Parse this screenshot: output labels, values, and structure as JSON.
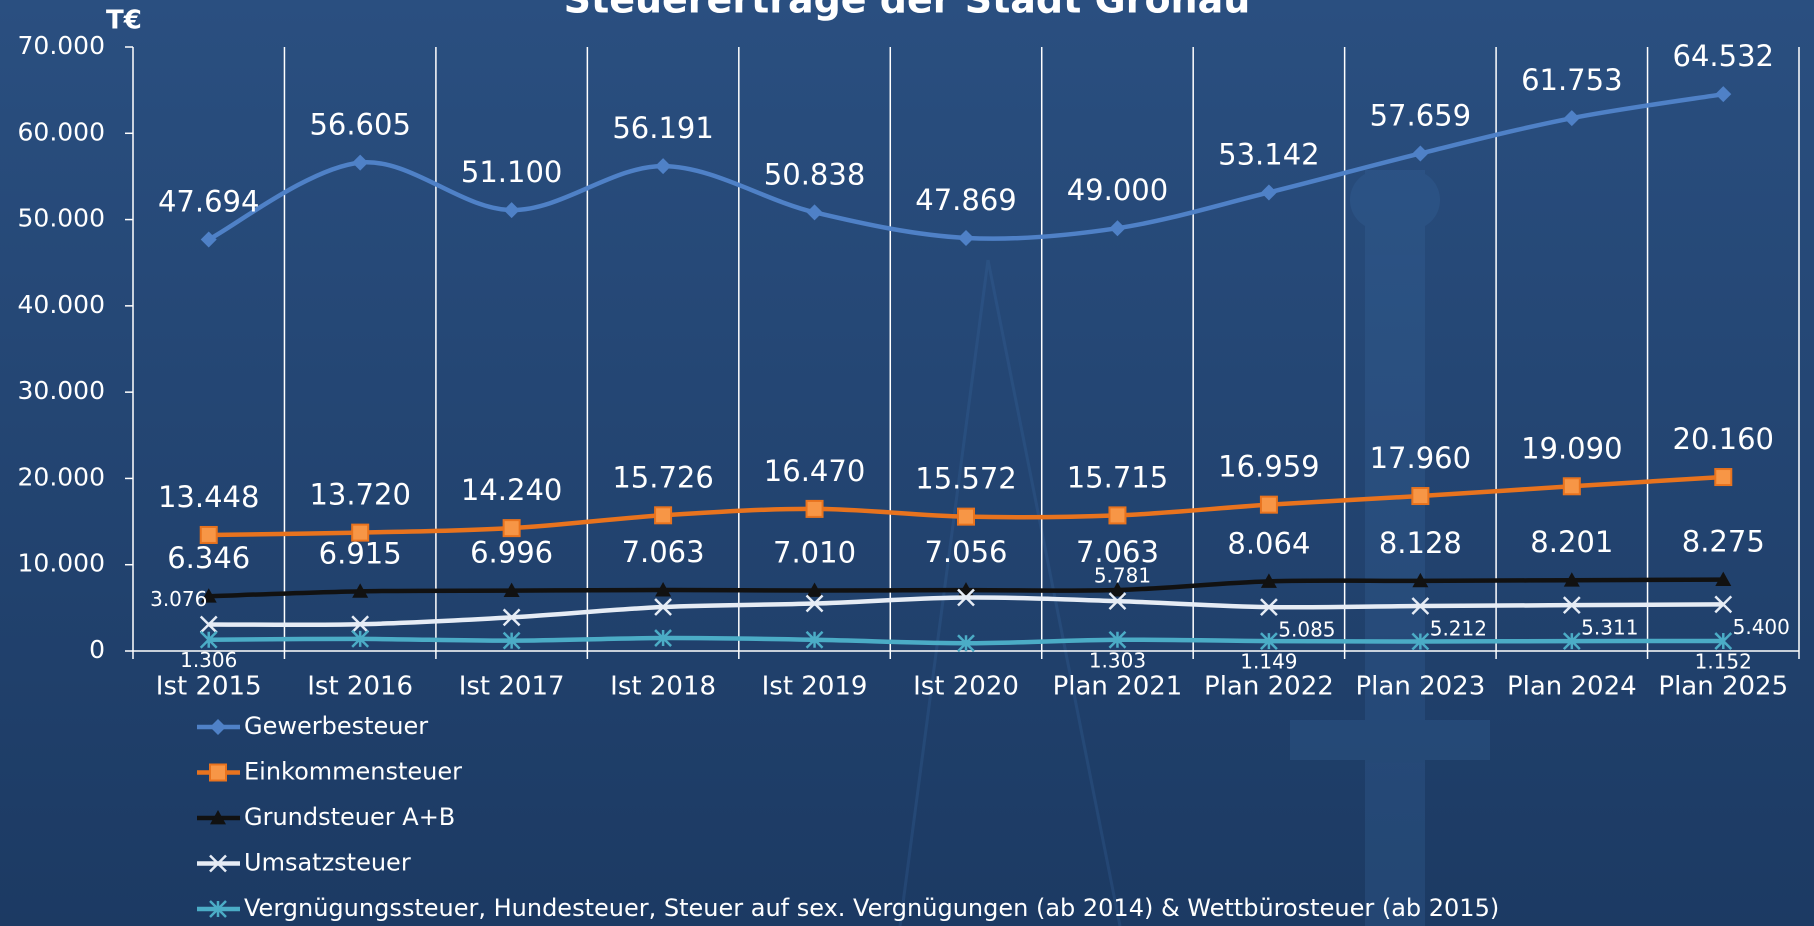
{
  "chart_data": {
    "type": "line",
    "title": "Steuererträge der Stadt Gronau",
    "y_unit": "T€",
    "categories": [
      "Ist 2015",
      "Ist 2016",
      "Ist 2017",
      "Ist 2018",
      "Ist 2019",
      "Ist 2020",
      "Plan 2021",
      "Plan 2022",
      "Plan 2023",
      "Plan 2024",
      "Plan 2025"
    ],
    "ylim": [
      0,
      70000
    ],
    "yticks": [
      0,
      {
        "value": 10000,
        "label": "10.000"
      },
      {
        "value": 20000,
        "label": "20.000"
      },
      {
        "value": 30000,
        "label": "30.000"
      },
      {
        "value": 40000,
        "label": "40.000"
      },
      {
        "value": 50000,
        "label": "50.000"
      },
      {
        "value": 60000,
        "label": "60.000"
      },
      {
        "value": 70000,
        "label": "70.000"
      }
    ],
    "grid": true,
    "smooth": true,
    "series": [
      {
        "name": "Gewerbesteuer",
        "color": "#4f81c7",
        "marker": "diamond",
        "values": [
          47694,
          56605,
          51100,
          56191,
          50838,
          47869,
          49000,
          53142,
          57659,
          61753,
          64532
        ],
        "value_labels": [
          "47.694",
          "56.605",
          "51.100",
          "56.191",
          "50.838",
          "47.869",
          "49.000",
          "53.142",
          "57.659",
          "61.753",
          "64.532"
        ]
      },
      {
        "name": "Einkommensteuer",
        "color": "#e8731e",
        "marker": "square",
        "values": [
          13448,
          13720,
          14240,
          15726,
          16470,
          15572,
          15715,
          16959,
          17960,
          19090,
          20160
        ],
        "value_labels": [
          "13.448",
          "13.720",
          "14.240",
          "15.726",
          "16.470",
          "15.572",
          "15.715",
          "16.959",
          "17.960",
          "19.090",
          "20.160"
        ]
      },
      {
        "name": "Grundsteuer A+B",
        "color": "#111111",
        "marker": "triangle",
        "values": [
          6346,
          6915,
          6996,
          7063,
          7010,
          7056,
          7063,
          8064,
          8128,
          8201,
          8275
        ],
        "value_labels": [
          "6.346",
          "6.915",
          "6.996",
          "7.063",
          "7.010",
          "7.056",
          "7.063",
          "8.064",
          "8.128",
          "8.201",
          "8.275"
        ]
      },
      {
        "name": "Umsatzsteuer",
        "color": "#e6ecf5",
        "marker": "x",
        "values": [
          3076,
          3100,
          3900,
          5100,
          5500,
          6200,
          5781,
          5085,
          5212,
          5311,
          5400
        ],
        "value_labels": [
          "3.076",
          null,
          null,
          null,
          null,
          null,
          "5.781",
          "5.085",
          "5.212",
          "5.311",
          "5.400"
        ]
      },
      {
        "name": "Vergnügungssteuer, Hundesteuer, Steuer auf sex. Vergnügungen (ab 2014) & Wettbürosteuer (ab 2015)",
        "color": "#4bacc6",
        "marker": "star",
        "values": [
          1306,
          1400,
          1200,
          1500,
          1300,
          900,
          1303,
          1149,
          1100,
          1150,
          1152
        ],
        "value_labels": [
          "1.306",
          null,
          null,
          null,
          null,
          null,
          "1.303",
          "1.149",
          null,
          null,
          "1.152"
        ]
      }
    ]
  }
}
